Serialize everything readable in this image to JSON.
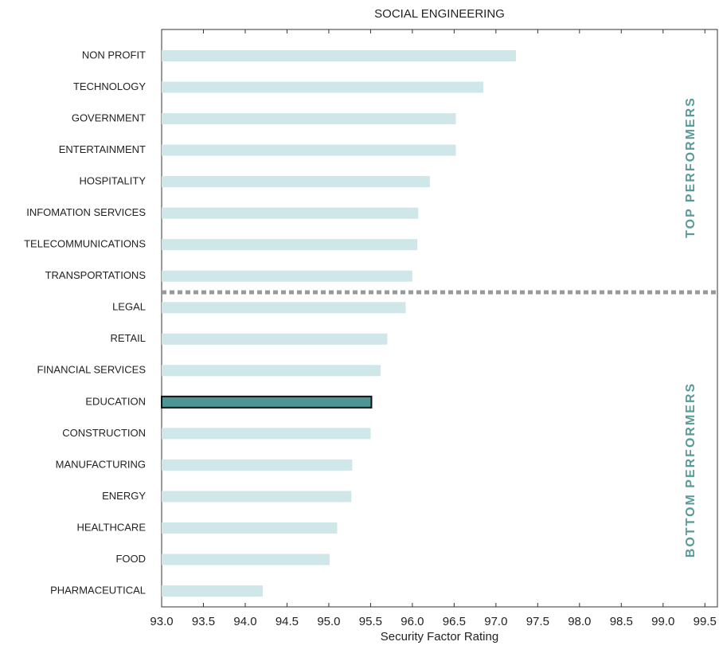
{
  "chart_data": {
    "type": "barh",
    "title": "SOCIAL ENGINEERING",
    "xlabel": "Security Factor Rating",
    "categories": [
      "NON PROFIT",
      "TECHNOLOGY",
      "GOVERNMENT",
      "ENTERTAINMENT",
      "HOSPITALITY",
      "INFOMATION SERVICES",
      "TELECOMMUNICATIONS",
      "TRANSPORTATIONS",
      "LEGAL",
      "RETAIL",
      "FINANCIAL SERVICES",
      "EDUCATION",
      "CONSTRUCTION",
      "MANUFACTURING",
      "ENERGY",
      "HEALTHCARE",
      "FOOD",
      "PHARMACEUTICAL"
    ],
    "values": [
      97.24,
      96.85,
      96.52,
      96.52,
      96.21,
      96.07,
      96.06,
      96.0,
      95.92,
      95.7,
      95.62,
      95.51,
      95.5,
      95.28,
      95.27,
      95.1,
      95.01,
      94.21
    ],
    "colors": [
      "#cfe7e8",
      "#cfe7e8",
      "#cfe7e8",
      "#cfe7e8",
      "#cfe7e8",
      "#cfe7e8",
      "#cfe7e8",
      "#cfe7e8",
      "#cfe7e8",
      "#cfe7e8",
      "#cfe7e8",
      "#4e9595",
      "#cfe7e8",
      "#cfe7e8",
      "#cfe7e8",
      "#cfe7e8",
      "#cfe7e8",
      "#cfe7e8"
    ],
    "xlim": [
      93,
      99.65
    ],
    "xticks": [
      {
        "value": 93,
        "label": "93.0"
      },
      {
        "value": 93.5,
        "label": "93.5"
      },
      {
        "value": 94,
        "label": "94.0"
      },
      {
        "value": 94.5,
        "label": "94.5"
      },
      {
        "value": 95,
        "label": "95.0"
      },
      {
        "value": 95.5,
        "label": "95.5"
      },
      {
        "value": 96,
        "label": "96.0"
      },
      {
        "value": 96.5,
        "label": "96.5"
      },
      {
        "value": 97,
        "label": "97.0"
      },
      {
        "value": 97.5,
        "label": "97.5"
      },
      {
        "value": 98,
        "label": "98.0"
      },
      {
        "value": 98.5,
        "label": "98.5"
      },
      {
        "value": 99,
        "label": "99.0"
      },
      {
        "value": 99.5,
        "label": "99.5"
      }
    ],
    "groups": [
      "TOP PERFORMERS",
      "BOTTOM PERFORMERS"
    ]
  }
}
